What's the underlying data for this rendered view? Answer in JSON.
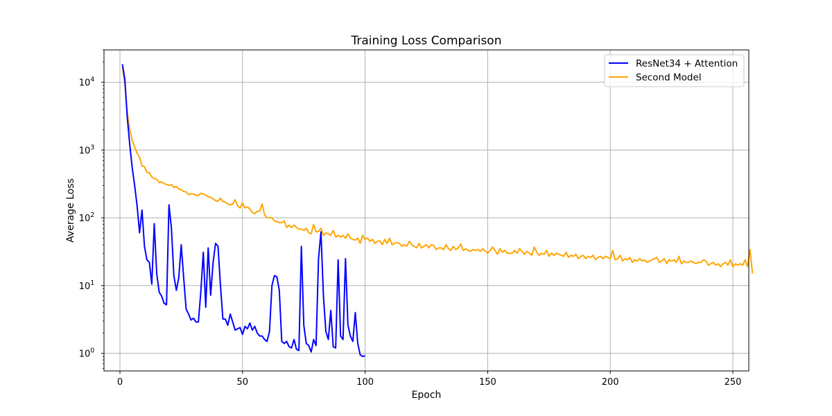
{
  "chart_data": {
    "type": "line",
    "title": "Training Loss Comparison",
    "xlabel": "Epoch",
    "ylabel": "Average Loss",
    "yscale": "log",
    "xlim": [
      -6.5,
      256.5
    ],
    "ylim": [
      0.55,
      30000
    ],
    "xticks": [
      0,
      50,
      100,
      150,
      200,
      250
    ],
    "yticks": [
      {
        "value": 1,
        "base": "10",
        "exp": "0"
      },
      {
        "value": 10,
        "base": "10",
        "exp": "1"
      },
      {
        "value": 100,
        "base": "10",
        "exp": "2"
      },
      {
        "value": 1000,
        "base": "10",
        "exp": "3"
      },
      {
        "value": 10000,
        "base": "10",
        "exp": "4"
      }
    ],
    "grid": true,
    "legend_position": "top-right",
    "series": [
      {
        "name": "ResNet34 + Attention",
        "color": "#0000ff",
        "x_start": 1,
        "values": [
          18500,
          11000,
          3000,
          1200,
          550,
          300,
          150,
          60,
          130,
          38,
          24,
          22,
          10.5,
          82,
          15,
          8,
          7,
          5.5,
          5.2,
          155,
          70,
          14,
          8.5,
          13,
          40,
          13,
          4.5,
          3.8,
          3.1,
          3.3,
          2.9,
          2.9,
          8.2,
          31,
          4.8,
          36,
          7.2,
          22,
          42,
          38,
          10,
          3.2,
          3.2,
          2.6,
          3.8,
          2.9,
          2.2,
          2.3,
          2.4,
          1.9,
          2.5,
          2.3,
          2.8,
          2.2,
          2.5,
          2.0,
          1.8,
          1.8,
          1.6,
          1.5,
          2.1,
          10,
          14,
          13.5,
          8.5,
          1.5,
          1.4,
          1.5,
          1.25,
          1.2,
          1.6,
          1.15,
          1.1,
          38,
          2.6,
          1.4,
          1.3,
          1.05,
          1.6,
          1.3,
          25,
          62,
          7,
          2.1,
          1.6,
          4.3,
          1.25,
          1.2,
          24,
          1.8,
          1.6,
          25,
          2.6,
          1.8,
          1.5,
          4,
          1.4,
          0.95,
          0.9,
          0.92
        ]
      },
      {
        "name": "Second Model",
        "color": "#ffa500",
        "x_start": 1,
        "values": [
          17000,
          9500,
          3500,
          2000,
          1400,
          1100,
          900,
          780,
          580,
          570,
          470,
          460,
          400,
          380,
          370,
          330,
          340,
          320,
          310,
          300,
          310,
          280,
          290,
          265,
          260,
          245,
          240,
          220,
          225,
          225,
          215,
          215,
          230,
          225,
          215,
          205,
          200,
          190,
          180,
          175,
          195,
          175,
          170,
          160,
          155,
          160,
          185,
          150,
          140,
          165,
          140,
          145,
          135,
          120,
          115,
          125,
          125,
          160,
          110,
          100,
          100,
          100,
          90,
          88,
          85,
          85,
          90,
          72,
          78,
          72,
          78,
          72,
          68,
          68,
          65,
          70,
          60,
          58,
          80,
          62,
          63,
          70,
          55,
          60,
          58,
          55,
          65,
          52,
          55,
          52,
          55,
          50,
          58,
          50,
          48,
          47,
          50,
          42,
          55,
          48,
          50,
          45,
          48,
          42,
          45,
          46,
          40,
          48,
          42,
          50,
          40,
          42,
          43,
          42,
          38,
          40,
          38,
          45,
          40,
          38,
          36,
          42,
          36,
          38,
          40,
          36,
          40,
          39,
          34,
          36,
          36,
          34,
          40,
          35,
          33,
          38,
          34,
          36,
          41,
          33,
          35,
          33,
          32,
          34,
          33,
          34,
          32,
          35,
          32,
          30,
          33,
          37,
          33,
          29,
          35,
          31,
          33,
          30,
          30,
          30,
          33,
          30,
          35,
          32,
          29,
          32,
          30,
          28,
          37,
          31,
          28,
          30,
          29,
          33,
          27,
          30,
          28,
          30,
          29,
          28,
          27,
          31,
          26,
          28,
          27,
          29,
          25,
          27,
          28,
          25,
          27,
          26,
          28,
          24,
          26,
          27,
          25,
          27,
          26,
          25,
          33,
          24,
          25,
          28,
          23,
          25,
          24,
          26,
          22,
          24,
          23,
          25,
          23,
          24,
          22,
          23,
          24,
          25,
          26,
          22,
          23,
          25,
          21,
          24,
          23,
          24,
          22,
          27,
          21,
          23,
          22,
          22,
          23,
          22,
          21,
          22,
          22,
          24,
          23,
          20,
          21,
          22,
          20,
          21,
          19,
          21,
          22,
          20,
          24,
          19,
          21,
          20,
          21,
          20,
          24,
          19,
          34,
          15
        ]
      }
    ]
  }
}
